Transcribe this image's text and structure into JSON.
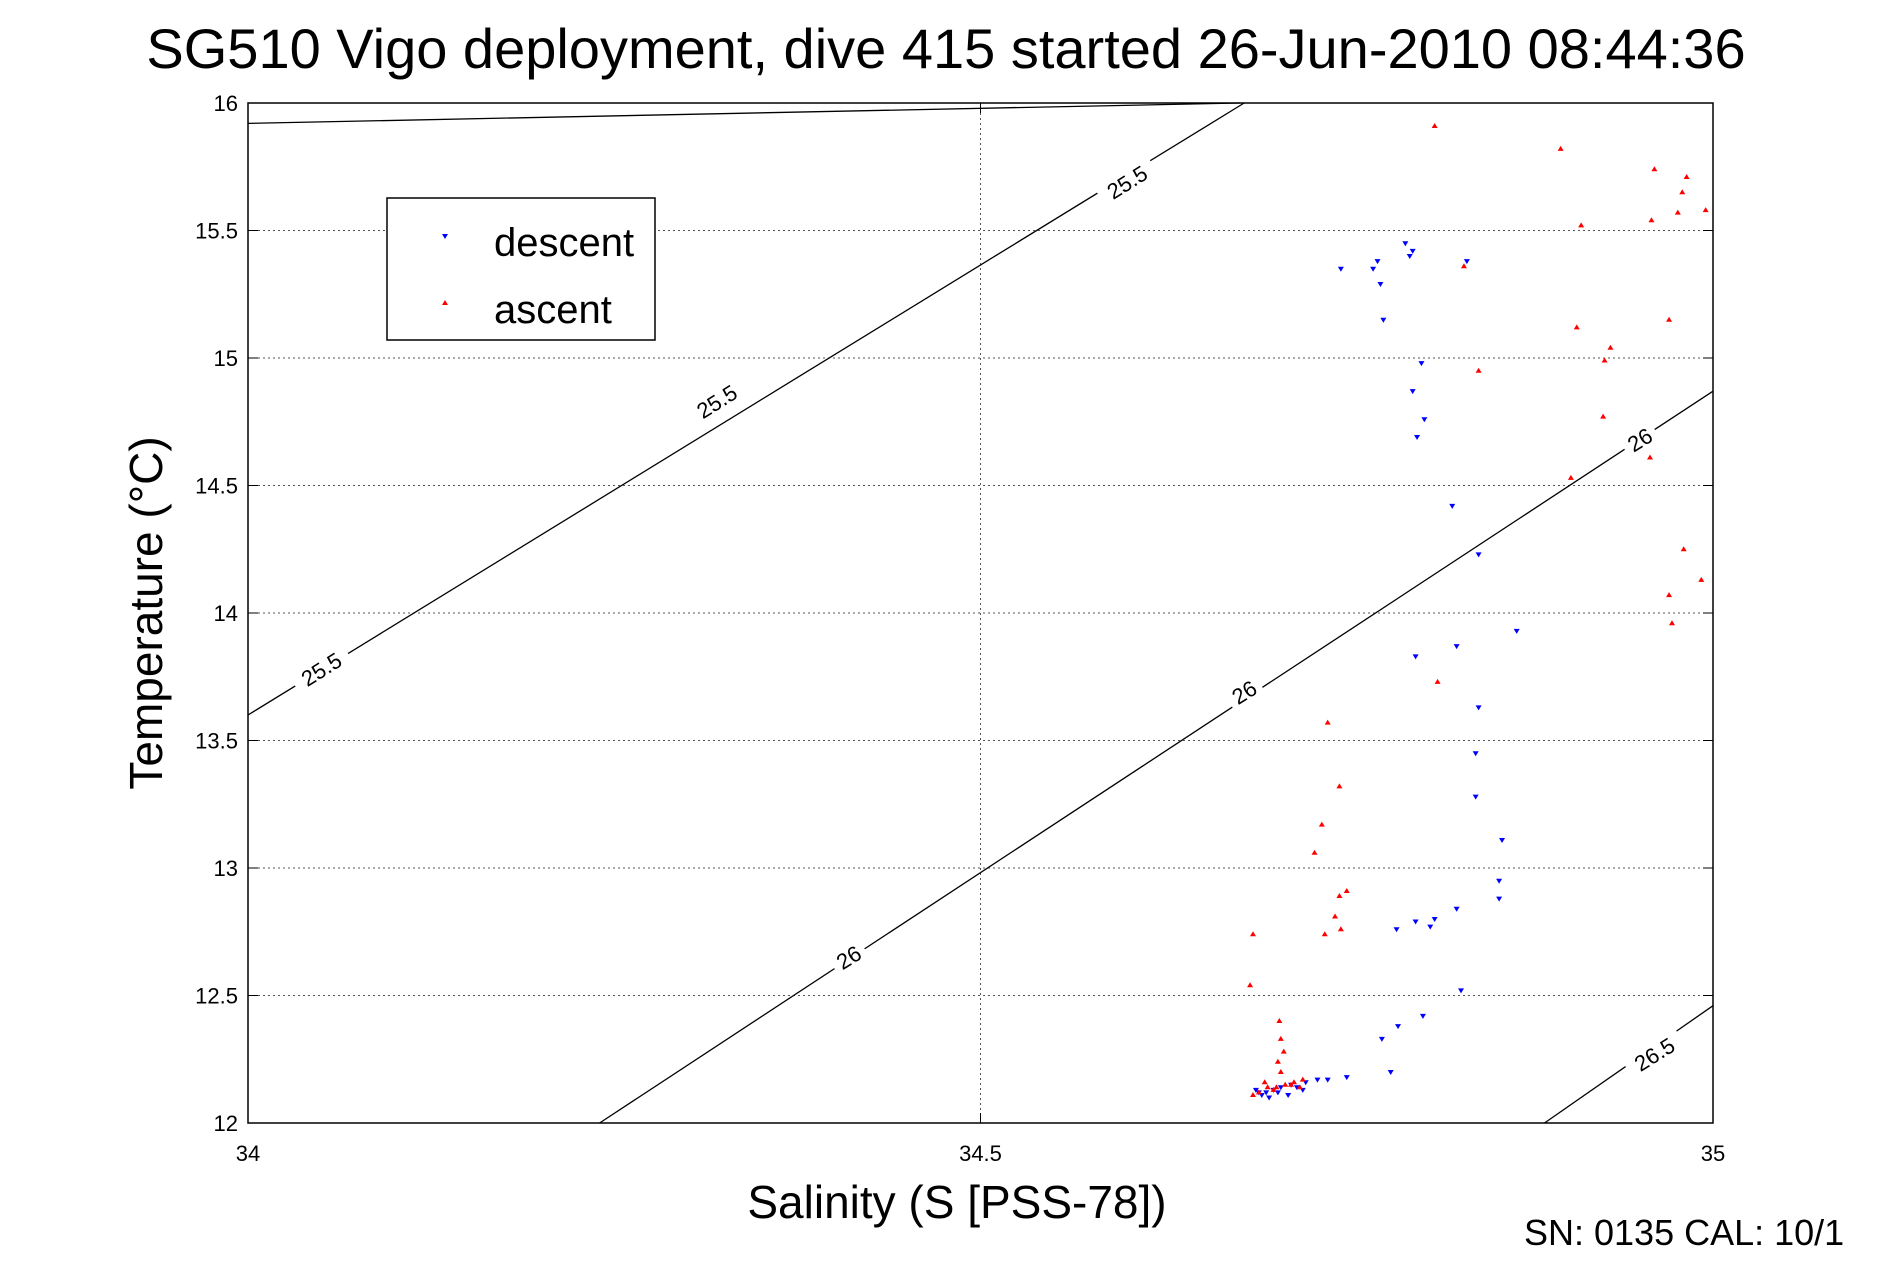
{
  "chart_data": {
    "type": "scatter",
    "title": "SG510 Vigo deployment, dive 415 started 26-Jun-2010 08:44:36",
    "xlabel": "Salinity (S [PSS-78])",
    "ylabel": "Temperature (°C)",
    "xlim": [
      34,
      35
    ],
    "ylim": [
      12,
      16
    ],
    "xticks": [
      34,
      34.5,
      35
    ],
    "xtick_labels": [
      "34",
      "34.5",
      "35"
    ],
    "yticks": [
      12,
      12.5,
      13,
      13.5,
      14,
      14.5,
      15,
      15.5,
      16
    ],
    "ytick_labels": [
      "12",
      "12.5",
      "13",
      "13.5",
      "14",
      "14.5",
      "15",
      "15.5",
      "16"
    ],
    "grid": true,
    "legend_position": "top-left",
    "footer_text": "SN: 0135  CAL: 10/1",
    "density_contours": [
      {
        "level_label": "25.5",
        "points": [
          [
            34,
            15.92
          ],
          [
            34.677,
            16
          ]
        ]
      },
      {
        "level_label": "25.5",
        "points": [
          [
            34,
            13.6
          ],
          [
            34.68,
            16
          ]
        ]
      },
      {
        "level_label": "26",
        "points": [
          [
            34.24,
            12
          ],
          [
            35,
            14.87
          ]
        ]
      },
      {
        "level_label": "26.5",
        "points": [
          [
            34.885,
            12
          ],
          [
            35,
            12.46
          ]
        ]
      }
    ],
    "contour_labels": [
      {
        "text": "25.5",
        "x": 34.6,
        "y": 15.69
      },
      {
        "text": "25.5",
        "x": 34.32,
        "y": 14.83
      },
      {
        "text": "25.5",
        "x": 34.05,
        "y": 13.78
      },
      {
        "text": "26",
        "x": 34.41,
        "y": 12.65
      },
      {
        "text": "26",
        "x": 34.68,
        "y": 13.69
      },
      {
        "text": "26",
        "x": 34.95,
        "y": 14.68
      },
      {
        "text": "26.5",
        "x": 34.96,
        "y": 12.27
      }
    ],
    "series": [
      {
        "name": "descent",
        "color": "#0000ff",
        "marker": "triangle-down",
        "points": [
          [
            34.746,
            15.35
          ],
          [
            34.768,
            15.35
          ],
          [
            34.771,
            15.38
          ],
          [
            34.773,
            15.29
          ],
          [
            34.775,
            15.15
          ],
          [
            34.79,
            15.45
          ],
          [
            34.793,
            15.4
          ],
          [
            34.795,
            15.42
          ],
          [
            34.801,
            14.98
          ],
          [
            34.795,
            14.87
          ],
          [
            34.803,
            14.76
          ],
          [
            34.798,
            14.69
          ],
          [
            34.832,
            15.38
          ],
          [
            34.822,
            14.42
          ],
          [
            34.84,
            14.23
          ],
          [
            34.866,
            13.93
          ],
          [
            34.825,
            13.87
          ],
          [
            34.797,
            13.83
          ],
          [
            34.84,
            13.63
          ],
          [
            34.838,
            13.45
          ],
          [
            34.838,
            13.28
          ],
          [
            34.856,
            13.11
          ],
          [
            34.854,
            12.95
          ],
          [
            34.854,
            12.88
          ],
          [
            34.825,
            12.84
          ],
          [
            34.81,
            12.8
          ],
          [
            34.807,
            12.77
          ],
          [
            34.797,
            12.79
          ],
          [
            34.784,
            12.76
          ],
          [
            34.828,
            12.52
          ],
          [
            34.802,
            12.42
          ],
          [
            34.785,
            12.38
          ],
          [
            34.774,
            12.33
          ],
          [
            34.78,
            12.2
          ],
          [
            34.75,
            12.18
          ],
          [
            34.737,
            12.17
          ],
          [
            34.73,
            12.17
          ],
          [
            34.722,
            12.16
          ],
          [
            34.712,
            12.15
          ],
          [
            34.705,
            12.14
          ],
          [
            34.7,
            12.13
          ],
          [
            34.695,
            12.12
          ],
          [
            34.692,
            12.11
          ],
          [
            34.69,
            12.12
          ],
          [
            34.688,
            12.13
          ],
          [
            34.72,
            12.13
          ],
          [
            34.716,
            12.14
          ],
          [
            34.71,
            12.11
          ],
          [
            34.703,
            12.12
          ],
          [
            34.697,
            12.1
          ]
        ]
      },
      {
        "name": "ascent",
        "color": "#ff0000",
        "marker": "triangle-up",
        "points": [
          [
            34.81,
            15.91
          ],
          [
            34.896,
            15.82
          ],
          [
            34.96,
            15.74
          ],
          [
            34.982,
            15.71
          ],
          [
            34.979,
            15.65
          ],
          [
            34.995,
            15.58
          ],
          [
            34.976,
            15.57
          ],
          [
            34.958,
            15.54
          ],
          [
            34.91,
            15.52
          ],
          [
            34.83,
            15.36
          ],
          [
            34.97,
            15.15
          ],
          [
            34.907,
            15.12
          ],
          [
            34.93,
            15.04
          ],
          [
            34.926,
            14.99
          ],
          [
            34.84,
            14.95
          ],
          [
            34.925,
            14.77
          ],
          [
            34.957,
            14.61
          ],
          [
            34.903,
            14.53
          ],
          [
            34.98,
            14.25
          ],
          [
            34.992,
            14.13
          ],
          [
            34.97,
            14.07
          ],
          [
            34.972,
            13.96
          ],
          [
            34.812,
            13.73
          ],
          [
            34.737,
            13.57
          ],
          [
            34.745,
            13.32
          ],
          [
            34.733,
            13.17
          ],
          [
            34.728,
            13.06
          ],
          [
            34.75,
            12.91
          ],
          [
            34.745,
            12.89
          ],
          [
            34.742,
            12.81
          ],
          [
            34.746,
            12.76
          ],
          [
            34.735,
            12.74
          ],
          [
            34.686,
            12.74
          ],
          [
            34.684,
            12.54
          ],
          [
            34.704,
            12.4
          ],
          [
            34.705,
            12.33
          ],
          [
            34.707,
            12.28
          ],
          [
            34.703,
            12.24
          ],
          [
            34.705,
            12.2
          ],
          [
            34.72,
            12.17
          ],
          [
            34.714,
            12.16
          ],
          [
            34.708,
            12.15
          ],
          [
            34.702,
            12.14
          ],
          [
            34.696,
            12.14
          ],
          [
            34.69,
            12.12
          ],
          [
            34.686,
            12.11
          ],
          [
            34.712,
            12.15
          ],
          [
            34.7,
            12.13
          ],
          [
            34.694,
            12.16
          ],
          [
            34.718,
            12.14
          ]
        ]
      }
    ]
  }
}
